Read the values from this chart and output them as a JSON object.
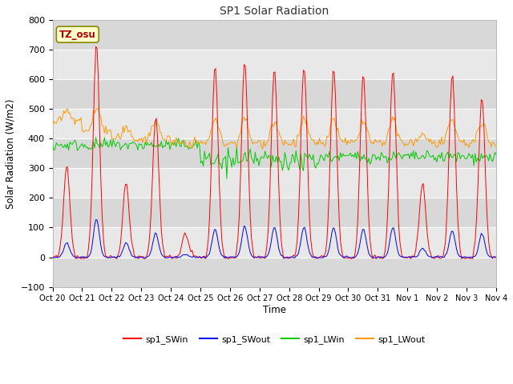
{
  "title": "SP1 Solar Radiation",
  "xlabel": "Time",
  "ylabel": "Solar Radiation (W/m2)",
  "ylim": [
    -100,
    800
  ],
  "yticks": [
    -100,
    0,
    100,
    200,
    300,
    400,
    500,
    600,
    700,
    800
  ],
  "annotation_text": "TZ_osu",
  "annotation_color": "#aa0000",
  "annotation_bg": "#ffffcc",
  "annotation_border": "#888800",
  "series_colors": {
    "sp1_SWin": "#ff0000",
    "sp1_SWout": "#0000ee",
    "sp1_LWin": "#00cc00",
    "sp1_LWout": "#ff9900"
  },
  "fig_bg": "#ffffff",
  "plot_bg": "#e8e8e8",
  "band_colors": [
    "#d8d8d8",
    "#e8e8e8"
  ],
  "grid_color": "#ffffff",
  "tick_label_format": [
    "Oct 20",
    "Oct 21",
    "Oct 22",
    "Oct 23",
    "Oct 24",
    "Oct 25",
    "Oct 26",
    "Oct 27",
    "Oct 28",
    "Oct 29",
    "Oct 30",
    "Oct 31",
    "Nov 1",
    "Nov 2",
    "Nov 3",
    "Nov 4"
  ],
  "n_days": 15,
  "SWin_peaks": [
    310,
    720,
    250,
    470,
    80,
    640,
    660,
    640,
    645,
    640,
    615,
    630,
    250,
    620,
    540
  ],
  "SWout_peaks": [
    50,
    130,
    50,
    80,
    10,
    95,
    105,
    100,
    100,
    100,
    95,
    100,
    30,
    90,
    80
  ]
}
